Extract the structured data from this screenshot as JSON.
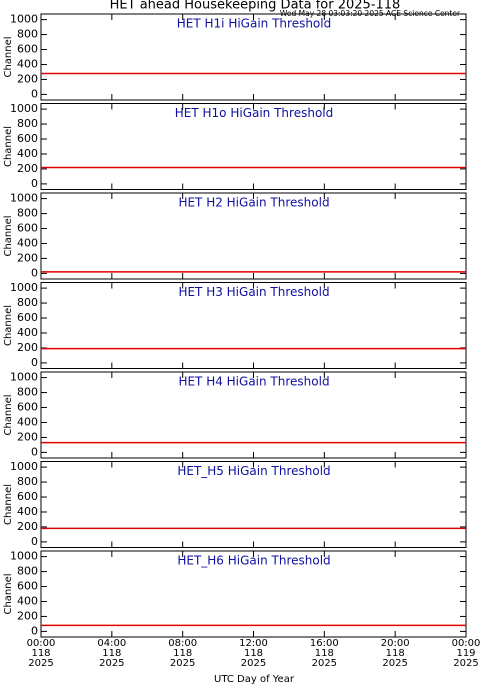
{
  "title": "HET ahead Housekeeping Data for 2025-118",
  "subtitle": "Wed May 28 03:03:20 2025 ACE Science Center",
  "xlabel": "UTC Day of Year",
  "xlim": [
    0,
    24
  ],
  "xticks": [
    {
      "value": 0,
      "label": "00:00\n118\n2025"
    },
    {
      "value": 4,
      "label": "04:00\n118\n2025"
    },
    {
      "value": 8,
      "label": "08:00\n118\n2025"
    },
    {
      "value": 12,
      "label": "12:00\n118\n2025"
    },
    {
      "value": 16,
      "label": "16:00\n118\n2025"
    },
    {
      "value": 20,
      "label": "20:00\n118\n2025"
    },
    {
      "value": 24,
      "label": "00:00\n119\n2025"
    }
  ],
  "chart_data": [
    {
      "type": "line",
      "title": "HET H1i HiGain Threshold",
      "ylabel": "Channel",
      "ylim": [
        -75,
        1075
      ],
      "yticks": [
        0,
        200,
        400,
        600,
        800,
        1000
      ],
      "series": [
        {
          "color": "#e00000",
          "x": [
            0,
            24
          ],
          "values": [
            280,
            280
          ]
        }
      ]
    },
    {
      "type": "line",
      "title": "HET H1o HiGain Threshold",
      "ylabel": "Channel",
      "ylim": [
        -75,
        1075
      ],
      "yticks": [
        0,
        200,
        400,
        600,
        800,
        1000
      ],
      "series": [
        {
          "color": "#e00000",
          "x": [
            0,
            24
          ],
          "values": [
            220,
            220
          ]
        }
      ]
    },
    {
      "type": "line",
      "title": "HET H2 HiGain Threshold",
      "ylabel": "Channel",
      "ylim": [
        -75,
        1075
      ],
      "yticks": [
        0,
        200,
        400,
        600,
        800,
        1000
      ],
      "series": [
        {
          "color": "#e00000",
          "x": [
            0,
            24
          ],
          "values": [
            20,
            20
          ]
        }
      ]
    },
    {
      "type": "line",
      "title": "HET H3 HiGain Threshold",
      "ylabel": "Channel",
      "ylim": [
        -75,
        1075
      ],
      "yticks": [
        0,
        200,
        400,
        600,
        800,
        1000
      ],
      "series": [
        {
          "color": "#e00000",
          "x": [
            0,
            24
          ],
          "values": [
            190,
            190
          ]
        }
      ]
    },
    {
      "type": "line",
      "title": "HET H4 HiGain Threshold",
      "ylabel": "Channel",
      "ylim": [
        -75,
        1075
      ],
      "yticks": [
        0,
        200,
        400,
        600,
        800,
        1000
      ],
      "series": [
        {
          "color": "#e00000",
          "x": [
            0,
            24
          ],
          "values": [
            130,
            130
          ]
        }
      ]
    },
    {
      "type": "line",
      "title": "HET_H5 HiGain Threshold",
      "ylabel": "Channel",
      "ylim": [
        -75,
        1075
      ],
      "yticks": [
        0,
        200,
        400,
        600,
        800,
        1000
      ],
      "series": [
        {
          "color": "#e00000",
          "x": [
            0,
            24
          ],
          "values": [
            180,
            180
          ]
        }
      ]
    },
    {
      "type": "line",
      "title": "HET_H6 HiGain Threshold",
      "ylabel": "Channel",
      "ylim": [
        -75,
        1075
      ],
      "yticks": [
        0,
        200,
        400,
        600,
        800,
        1000
      ],
      "series": [
        {
          "color": "#e00000",
          "x": [
            0,
            24
          ],
          "values": [
            80,
            80
          ]
        }
      ]
    }
  ]
}
